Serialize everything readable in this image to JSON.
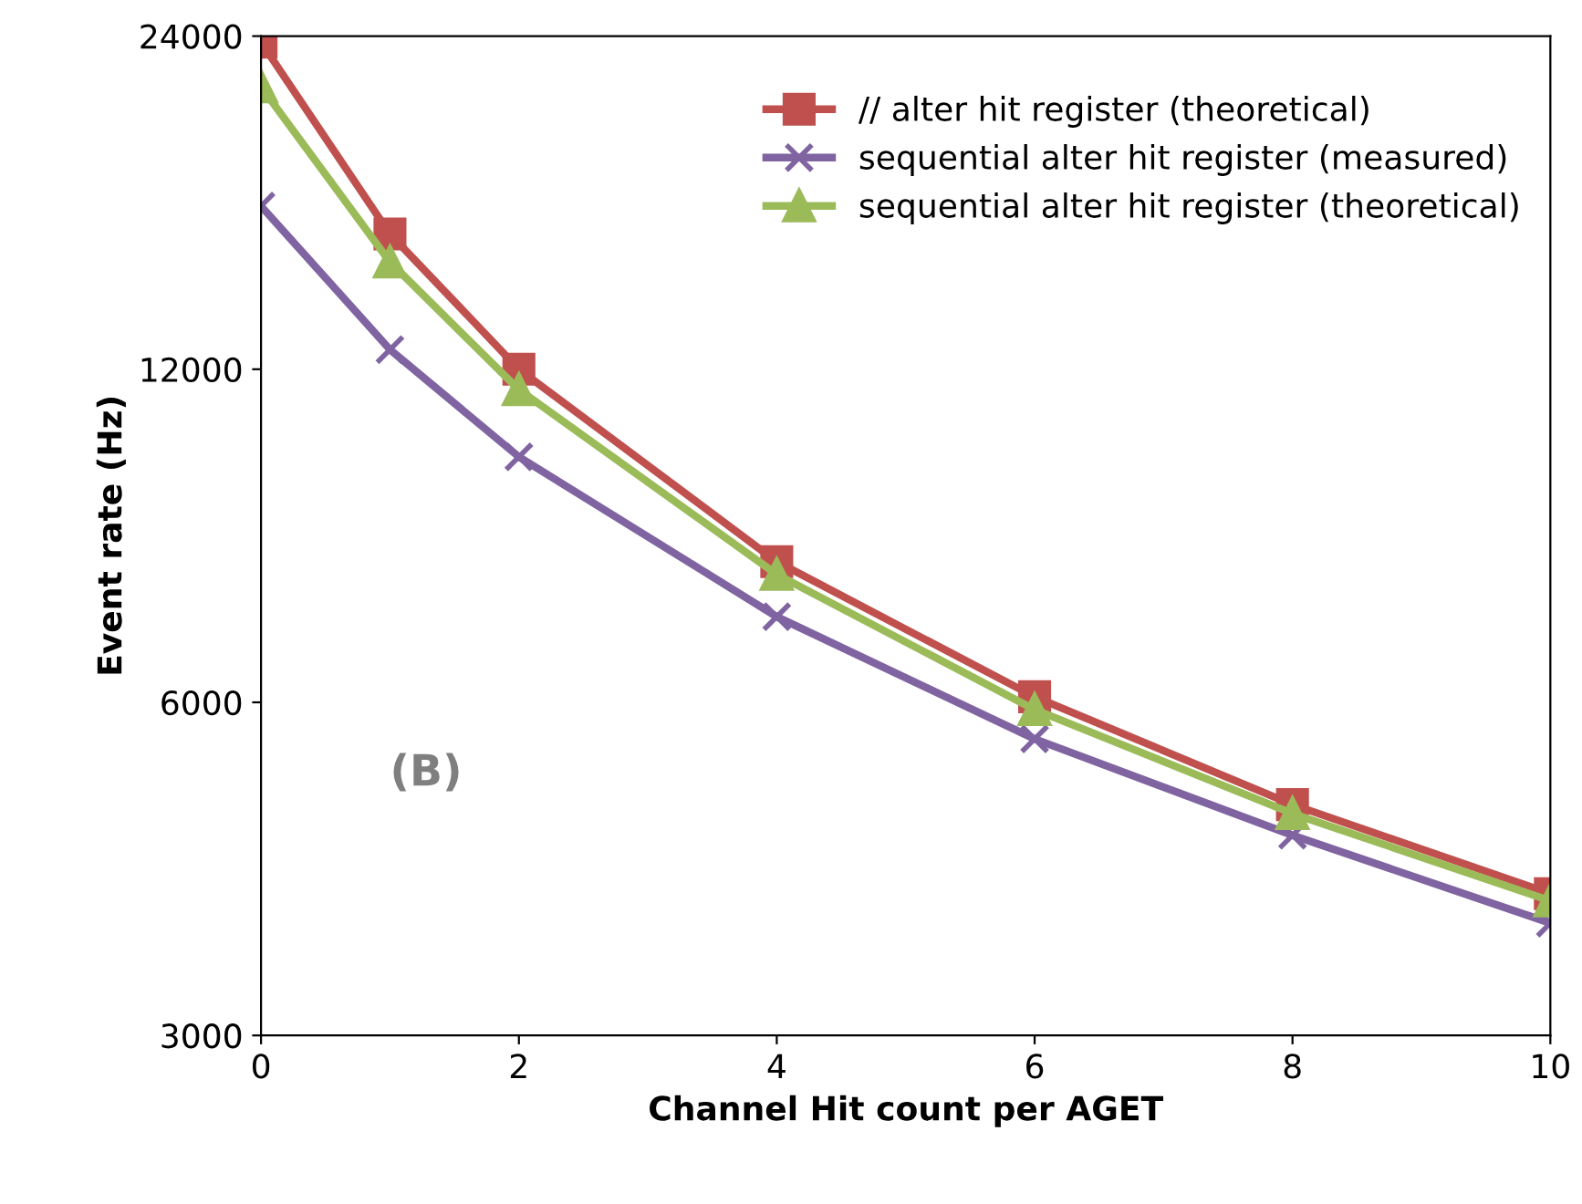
{
  "chart_data": {
    "type": "line",
    "xlabel": "Channel Hit count per AGET",
    "ylabel": "Event rate (Hz)",
    "log": "y",
    "x": [
      0,
      1,
      2,
      4,
      6,
      8,
      10
    ],
    "xlim": [
      0,
      10
    ],
    "xticks": [
      0,
      2,
      4,
      6,
      8,
      10
    ],
    "ylim": [
      3000,
      24000
    ],
    "yticks": [
      3000,
      6000,
      12000,
      24000
    ],
    "grid": false,
    "legend": "top right",
    "line_style": "solid",
    "series": [
      {
        "name": "// alter hit register (theoretical)",
        "color": "#c0504d",
        "marker": "square",
        "values": [
          23700,
          15900,
          12000,
          8040,
          6070,
          4850,
          4030
        ]
      },
      {
        "name": "sequential alter hit register (measured)",
        "color": "#8064a2",
        "marker": "cross",
        "values": [
          16850,
          12500,
          10000,
          7170,
          5560,
          4550,
          3790
        ]
      },
      {
        "name": "sequential alter hit register (theoretical)",
        "color": "#9bbb59",
        "marker": "triangle",
        "values": [
          21600,
          15000,
          11500,
          7830,
          5910,
          4760,
          3970
        ]
      }
    ],
    "annotations": [
      "(B)"
    ]
  }
}
